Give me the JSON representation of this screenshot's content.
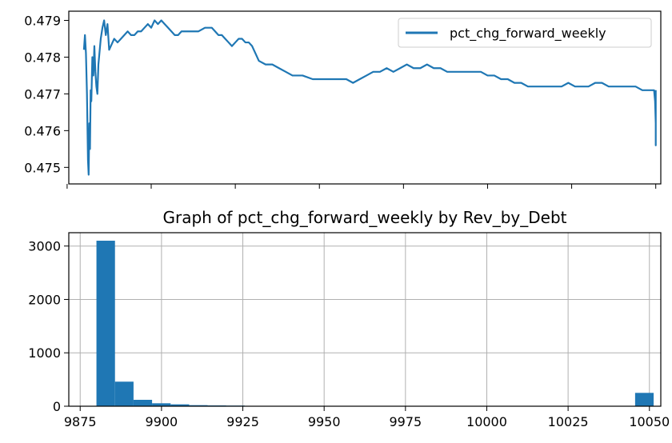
{
  "chart_data": [
    {
      "type": "line",
      "title": "",
      "xlabel": "",
      "ylabel": "",
      "xlim": [
        9875.5,
        10051.5
      ],
      "ylim": [
        0.47455,
        0.47925
      ],
      "grid": false,
      "legend": {
        "location": "upper right",
        "entries": [
          "pct_chg_forward_weekly"
        ]
      },
      "xticks": [
        9875,
        9900,
        9925,
        9950,
        9975,
        10000,
        10025,
        10050
      ],
      "xtick_labels_visible": false,
      "yticks": [
        0.475,
        0.476,
        0.477,
        0.478,
        0.479
      ],
      "ytick_labels": [
        "0.475",
        "0.476",
        "0.477",
        "0.478",
        "0.479"
      ],
      "color": "#1f77b4",
      "series": [
        {
          "name": "pct_chg_forward_weekly",
          "x": [
            9880.0,
            9880.3,
            9880.6,
            9880.9,
            9881.2,
            9881.4,
            9881.6,
            9881.8,
            9882.0,
            9882.2,
            9882.5,
            9882.8,
            9883.1,
            9883.4,
            9883.7,
            9884.0,
            9884.3,
            9884.6,
            9885.0,
            9885.5,
            9886.0,
            9886.5,
            9887.0,
            9887.5,
            9888.0,
            9889.0,
            9890.0,
            9891.0,
            9892.0,
            9893.0,
            9894.0,
            9895.0,
            9896.0,
            9897.0,
            9898.0,
            9899.0,
            9900.0,
            9901.0,
            9902.0,
            9903.0,
            9904.0,
            9905.0,
            9906.0,
            9907.0,
            9908.0,
            9909.0,
            9910.0,
            9912.0,
            9914.0,
            9916.0,
            9918.0,
            9919.0,
            9920.0,
            9921.0,
            9922.0,
            9923.0,
            9924.0,
            9925.0,
            9926.0,
            9927.0,
            9928.0,
            9929.0,
            9930.0,
            9931.0,
            9932.0,
            9934.0,
            9936.0,
            9938.0,
            9940.0,
            9942.0,
            9945.0,
            9948.0,
            9950.0,
            9952.0,
            9954.0,
            9956.0,
            9958.0,
            9960.0,
            9962.0,
            9964.0,
            9966.0,
            9968.0,
            9970.0,
            9972.0,
            9974.0,
            9976.0,
            9978.0,
            9980.0,
            9982.0,
            9984.0,
            9986.0,
            9988.0,
            9990.0,
            9992.0,
            9994.0,
            9996.0,
            9998.0,
            10000.0,
            10002.0,
            10004.0,
            10006.0,
            10008.0,
            10010.0,
            10012.0,
            10014.0,
            10016.0,
            10018.0,
            10020.0,
            10022.0,
            10024.0,
            10026.0,
            10028.0,
            10030.0,
            10032.0,
            10034.0,
            10036.0,
            10038.0,
            10040.0,
            10042.0,
            10044.0,
            10046.0,
            10048.0,
            10049.5,
            10049.8,
            10050.0,
            10050.0,
            10050.0
          ],
          "values": [
            0.4782,
            0.4786,
            0.4781,
            0.477,
            0.4752,
            0.4748,
            0.4762,
            0.4755,
            0.4771,
            0.4768,
            0.478,
            0.4775,
            0.4783,
            0.4776,
            0.4772,
            0.477,
            0.4778,
            0.4781,
            0.4785,
            0.4788,
            0.479,
            0.4786,
            0.4789,
            0.4782,
            0.4783,
            0.4785,
            0.4784,
            0.4785,
            0.4786,
            0.4787,
            0.4786,
            0.4786,
            0.4787,
            0.4787,
            0.4788,
            0.4789,
            0.4788,
            0.479,
            0.4789,
            0.479,
            0.4789,
            0.4788,
            0.4787,
            0.4786,
            0.4786,
            0.4787,
            0.4787,
            0.4787,
            0.4787,
            0.4788,
            0.4788,
            0.4787,
            0.4786,
            0.4786,
            0.4785,
            0.4784,
            0.4783,
            0.4784,
            0.4785,
            0.4785,
            0.4784,
            0.4784,
            0.4783,
            0.4781,
            0.4779,
            0.4778,
            0.4778,
            0.4777,
            0.4776,
            0.4775,
            0.4775,
            0.4774,
            0.4774,
            0.4774,
            0.4774,
            0.4774,
            0.4774,
            0.4773,
            0.4774,
            0.4775,
            0.4776,
            0.4776,
            0.4777,
            0.4776,
            0.4777,
            0.4778,
            0.4777,
            0.4777,
            0.4778,
            0.4777,
            0.4777,
            0.4776,
            0.4776,
            0.4776,
            0.4776,
            0.4776,
            0.4776,
            0.4775,
            0.4775,
            0.4774,
            0.4774,
            0.4773,
            0.4773,
            0.4772,
            0.4772,
            0.4772,
            0.4772,
            0.4772,
            0.4772,
            0.4773,
            0.4772,
            0.4772,
            0.4772,
            0.4773,
            0.4773,
            0.4772,
            0.4772,
            0.4772,
            0.4772,
            0.4772,
            0.4771,
            0.4771,
            0.4771,
            0.4768,
            0.4762,
            0.4756,
            0.4771
          ]
        }
      ]
    },
    {
      "type": "bar",
      "title": "Graph of pct_chg_forward_weekly by Rev_by_Debt",
      "xlabel": "",
      "ylabel": "",
      "xlim": [
        9871.5,
        10053.5
      ],
      "ylim": [
        0,
        3250
      ],
      "grid": true,
      "color": "#1f77b4",
      "bin_edges": [
        9880,
        9885.7,
        9891.4,
        9897.1,
        9902.8,
        9908.5,
        9914.2,
        9919.9,
        9925.6,
        9931.3,
        9937.0,
        9942.7,
        9948.4,
        9954.1,
        9959.8,
        9965.5,
        9971.2,
        9976.9,
        9982.6,
        9988.3,
        9994.0,
        10000.0,
        10005.7,
        10011.4,
        10017.1,
        10022.8,
        10028.5,
        10034.2,
        10039.9,
        10045.6,
        10051.3
      ],
      "values": [
        3100,
        460,
        120,
        55,
        35,
        20,
        15,
        12,
        5,
        3,
        2,
        2,
        1,
        1,
        0,
        0,
        0,
        0,
        0,
        0,
        0,
        0,
        0,
        0,
        0,
        0,
        0,
        0,
        0,
        250
      ],
      "xticks": [
        9875,
        9900,
        9925,
        9950,
        9975,
        10000,
        10025,
        10050
      ],
      "xtick_labels": [
        "9875",
        "9900",
        "9925",
        "9950",
        "9975",
        "10000",
        "10025",
        "10050"
      ],
      "yticks": [
        0,
        1000,
        2000,
        3000
      ],
      "ytick_labels": [
        "0",
        "1000",
        "2000",
        "3000"
      ]
    }
  ]
}
